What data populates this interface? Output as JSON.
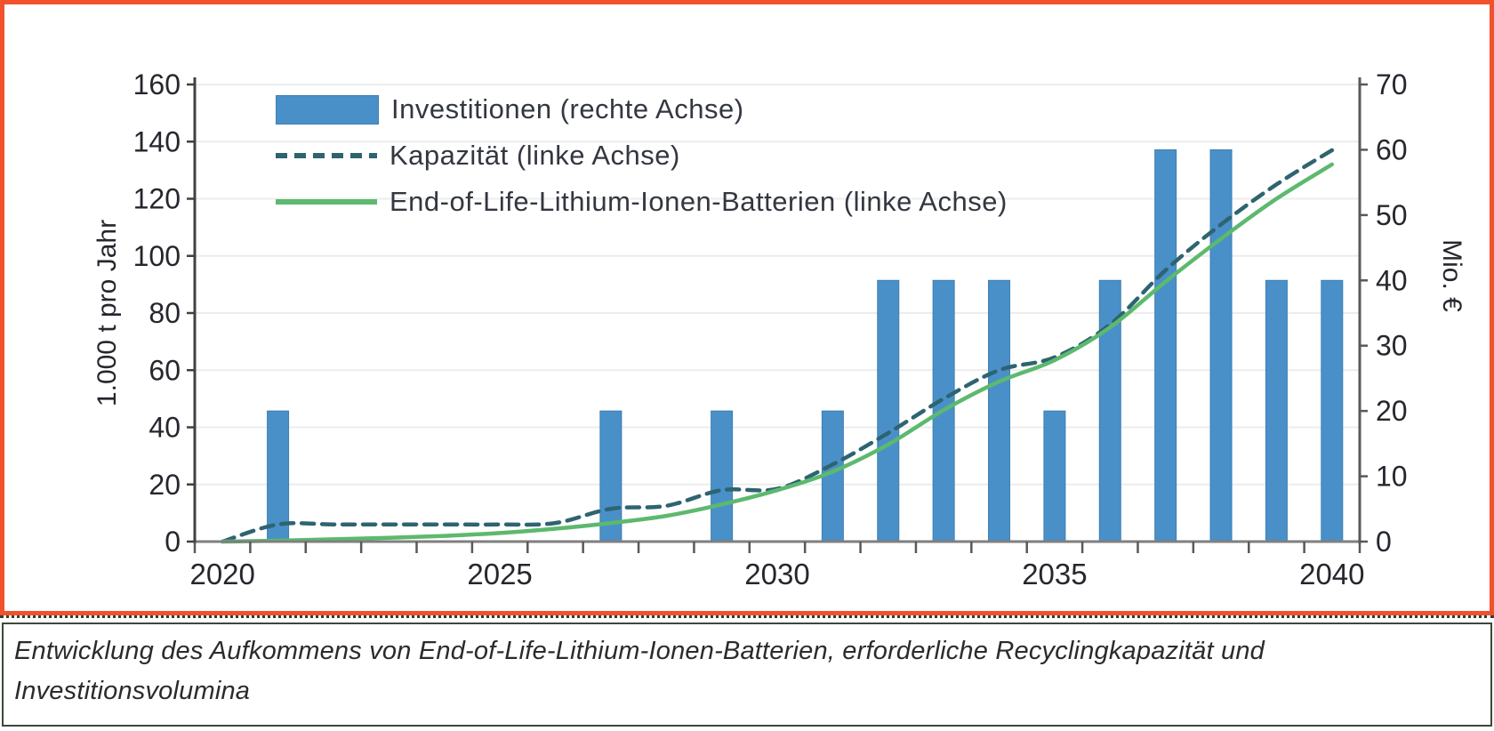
{
  "chart_data": {
    "type": "bar",
    "x": [
      2020,
      2021,
      2022,
      2023,
      2024,
      2025,
      2026,
      2027,
      2028,
      2029,
      2030,
      2031,
      2032,
      2033,
      2034,
      2035,
      2036,
      2037,
      2038,
      2039,
      2040
    ],
    "x_tick_labels": [
      "2020",
      "2025",
      "2030",
      "2035",
      "2040"
    ],
    "left_axis": {
      "title": "1.000 t pro Jahr",
      "min": 0,
      "max": 160,
      "step": 20
    },
    "right_axis": {
      "title": "Mio. €",
      "min": 0,
      "max": 70,
      "step": 10
    },
    "grid": true,
    "legend_position": "top-left-inside",
    "series": [
      {
        "name": "Investitionen (rechte Achse)",
        "type": "bar",
        "axis": "right",
        "values": [
          null,
          20,
          null,
          null,
          null,
          null,
          null,
          20,
          null,
          20,
          null,
          20,
          40,
          40,
          40,
          20,
          40,
          60,
          60,
          40,
          40
        ]
      },
      {
        "name": "Kapazität (linke Achse)",
        "type": "line",
        "dash": "dashed",
        "axis": "left",
        "values": [
          0,
          6,
          6,
          6,
          6,
          6,
          6.5,
          11.5,
          12.5,
          18,
          18.5,
          27,
          38,
          50,
          60,
          64.5,
          76,
          95,
          111,
          125,
          137
        ]
      },
      {
        "name": "End-of-Life-Lithium-Ionen-Batterien (linke Achse)",
        "type": "line",
        "dash": "solid",
        "axis": "left",
        "values": [
          0,
          0.3,
          0.8,
          1.3,
          2,
          3,
          4.5,
          6.5,
          9,
          13,
          18,
          24.5,
          34,
          46,
          56,
          63.5,
          75,
          91,
          106,
          120,
          132
        ]
      }
    ]
  },
  "colors": {
    "bar": "#4a90c8",
    "bar_edge": "#3d7fb2",
    "kapazitaet": "#2e6470",
    "eol": "#5cb96e",
    "frame": "#f1512d",
    "grid": "#ececec",
    "axis_x": "#7f7f7f",
    "axis_y": "#404040",
    "tick": "#595959",
    "tick_text": "#26262e"
  },
  "caption": {
    "line1": "Entwicklung des Aufkommens von End-of-Life-Lithium-Ionen-Batterien, erforderliche Recyclingkapazität und",
    "line2": "Investitionsvolumina"
  }
}
